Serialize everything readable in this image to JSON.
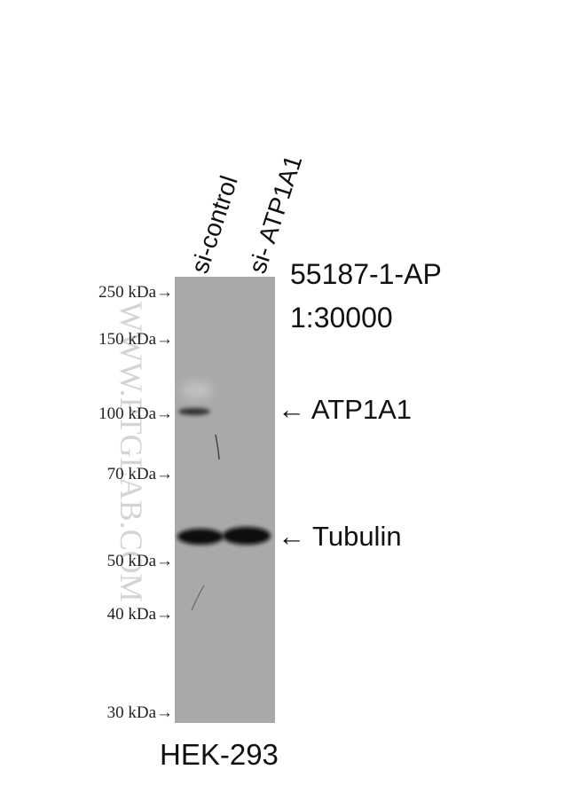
{
  "lanes": [
    "si-control",
    "si- ATP1A1"
  ],
  "markers": [
    "250 kDa→",
    "150 kDa→",
    "100 kDa→",
    "70 kDa→",
    "50 kDa→",
    "40 kDa→",
    "30 kDa→"
  ],
  "antibody": {
    "id": "55187-1-AP",
    "dilution": "1:30000"
  },
  "bands": [
    "← ATP1A1",
    "← Tubulin"
  ],
  "cell_line": "HEK-293",
  "watermark": "WWW.PTGLAB.COM"
}
